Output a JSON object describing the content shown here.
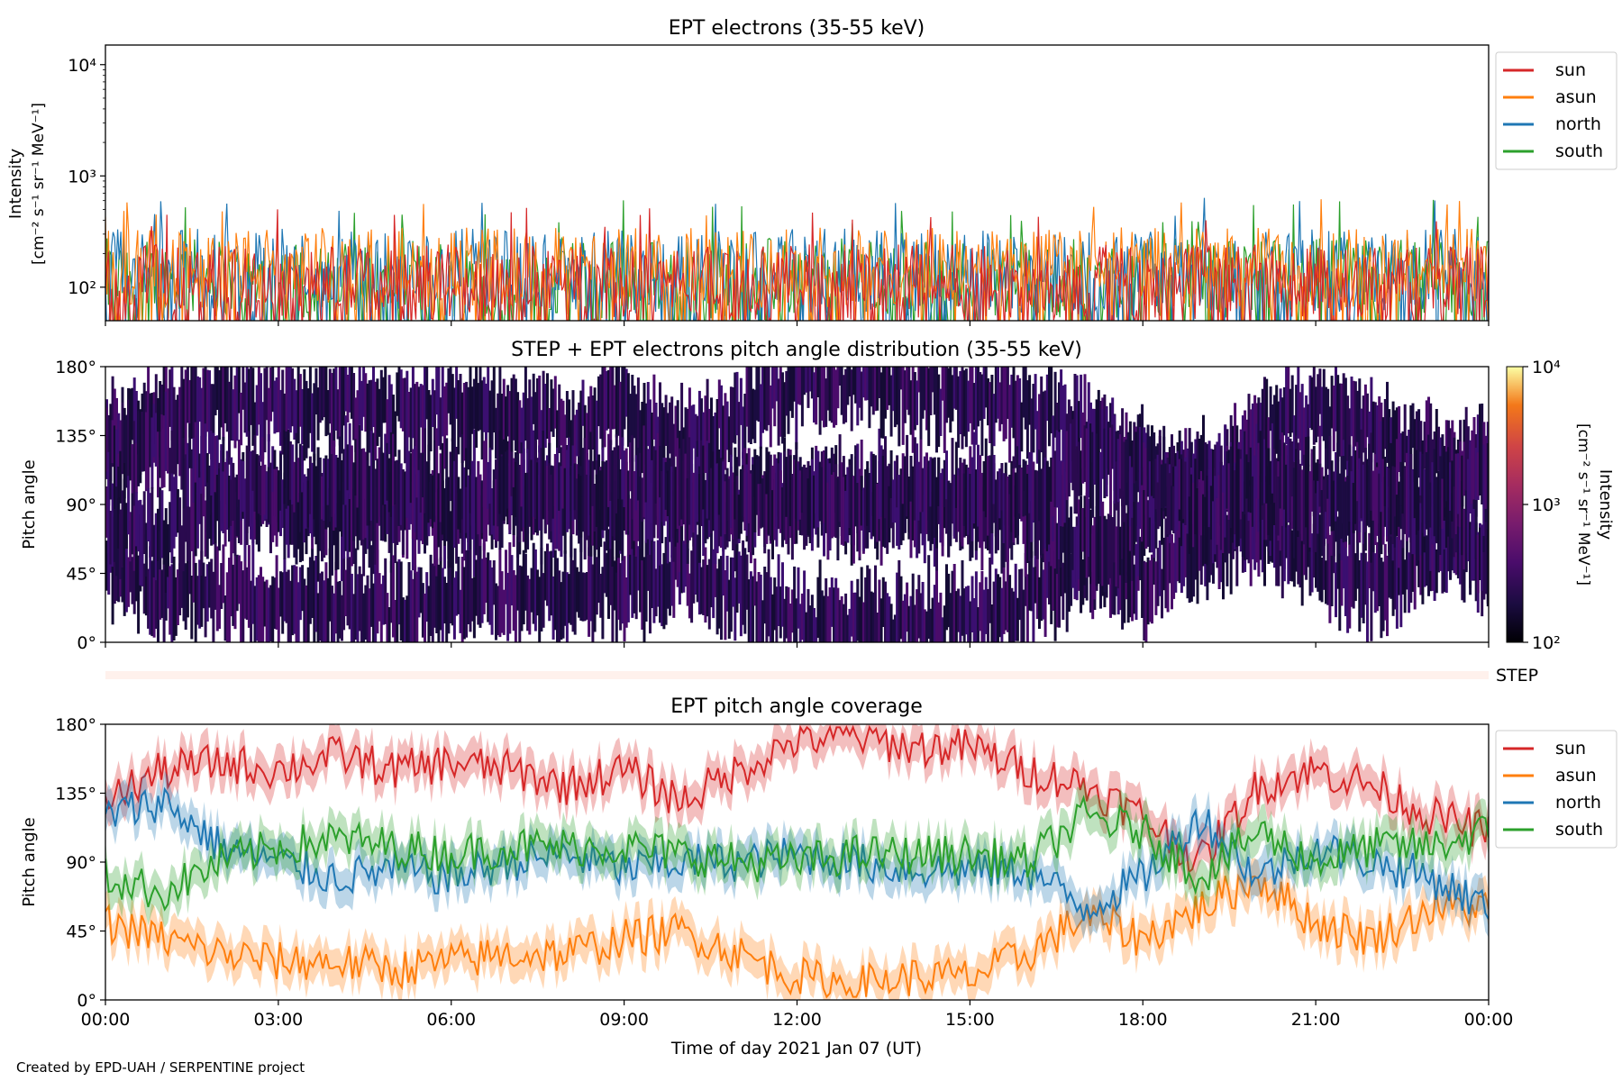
{
  "credit": "Created by EPD-UAH / SERPENTINE project",
  "colors": {
    "sun": "#d62728",
    "asun": "#ff7f0e",
    "north": "#1f77b4",
    "south": "#2ca02c",
    "step_strip": "#fff1ec"
  },
  "chart_data": [
    {
      "type": "line",
      "title": "EPT electrons (35-55 keV)",
      "ylabel": "Intensity",
      "yunit_label": "[cm⁻² s⁻¹ sr⁻¹ MeV⁻¹]",
      "yscale": "log",
      "ylim": [
        50,
        15000
      ],
      "yticks": [
        {
          "v": 100,
          "label": "10²"
        },
        {
          "v": 1000,
          "label": "10³"
        },
        {
          "v": 10000,
          "label": "10⁴"
        }
      ],
      "xlim": [
        "2021-01-07 00:00",
        "2021-01-08 00:00"
      ],
      "series_names": [
        "sun",
        "asun",
        "north",
        "south"
      ],
      "series": [
        {
          "name": "sun",
          "base": 110,
          "spread": 2.2,
          "max_spike": 540
        },
        {
          "name": "asun",
          "base": 150,
          "spread": 2.3,
          "max_spike": 620
        },
        {
          "name": "north",
          "base": 140,
          "spread": 2.4,
          "max_spike": 710
        },
        {
          "name": "south",
          "base": 120,
          "spread": 2.3,
          "max_spike": 620
        }
      ],
      "legend": "outside-right"
    },
    {
      "type": "heatmap",
      "title": "STEP + EPT electrons pitch angle distribution (35-55 keV)",
      "ylabel": "Pitch angle",
      "ylim": [
        0,
        180
      ],
      "yticks": [
        {
          "v": 0,
          "label": "0°"
        },
        {
          "v": 45,
          "label": "45°"
        },
        {
          "v": 90,
          "label": "90°"
        },
        {
          "v": 135,
          "label": "135°"
        },
        {
          "v": 180,
          "label": "180°"
        }
      ],
      "colorbar": {
        "label": "Intensity",
        "unit_label": "[cm⁻² s⁻¹ sr⁻¹ MeV⁻¹]",
        "scale": "log",
        "range": [
          100,
          10000
        ],
        "ticks": [
          {
            "v": 100,
            "label": "10²"
          },
          {
            "v": 1000,
            "label": "10³"
          },
          {
            "v": 10000,
            "label": "10⁴"
          }
        ],
        "colormap": "inferno"
      },
      "step_label": "STEP"
    },
    {
      "type": "line",
      "title": "EPT pitch angle coverage",
      "ylabel": "Pitch angle",
      "xlabel": "Time of day 2021 Jan 07 (UT)",
      "ylim": [
        0,
        180
      ],
      "yticks": [
        {
          "v": 0,
          "label": "0°"
        },
        {
          "v": 45,
          "label": "45°"
        },
        {
          "v": 90,
          "label": "90°"
        },
        {
          "v": 135,
          "label": "135°"
        },
        {
          "v": 180,
          "label": "180°"
        }
      ],
      "xticks": [
        "00:00",
        "03:00",
        "06:00",
        "09:00",
        "12:00",
        "15:00",
        "18:00",
        "21:00",
        "00:00"
      ],
      "band_halfwidth_deg": 12,
      "series": [
        {
          "name": "sun",
          "hours": [
            0,
            1,
            2,
            3,
            4,
            5,
            6,
            7,
            8,
            9,
            10,
            11,
            12,
            13,
            14,
            15,
            16,
            17,
            18,
            19,
            20,
            21,
            22,
            23,
            24
          ],
          "values": [
            130,
            150,
            155,
            150,
            160,
            150,
            155,
            150,
            140,
            150,
            130,
            150,
            170,
            172,
            165,
            165,
            150,
            140,
            120,
            90,
            140,
            150,
            140,
            120,
            110
          ]
        },
        {
          "name": "asun",
          "hours": [
            0,
            1,
            2,
            3,
            4,
            5,
            6,
            7,
            8,
            9,
            10,
            11,
            12,
            13,
            14,
            15,
            16,
            17,
            18,
            19,
            20,
            21,
            22,
            23,
            24
          ],
          "values": [
            50,
            40,
            30,
            25,
            25,
            20,
            25,
            30,
            30,
            40,
            45,
            30,
            15,
            10,
            15,
            15,
            30,
            55,
            40,
            60,
            80,
            50,
            40,
            60,
            60
          ]
        },
        {
          "name": "north",
          "hours": [
            0,
            1,
            2,
            3,
            4,
            5,
            6,
            7,
            8,
            9,
            10,
            11,
            12,
            13,
            14,
            15,
            16,
            17,
            18,
            19,
            20,
            21,
            22,
            23,
            24
          ],
          "values": [
            120,
            130,
            100,
            90,
            80,
            85,
            80,
            90,
            95,
            85,
            90,
            90,
            95,
            90,
            85,
            85,
            85,
            60,
            80,
            120,
            80,
            100,
            90,
            80,
            60
          ]
        },
        {
          "name": "south",
          "hours": [
            0,
            1,
            2,
            3,
            4,
            5,
            6,
            7,
            8,
            9,
            10,
            11,
            12,
            13,
            14,
            15,
            16,
            17,
            18,
            19,
            20,
            21,
            22,
            23,
            24
          ],
          "values": [
            80,
            70,
            90,
            100,
            105,
            100,
            95,
            100,
            100,
            100,
            95,
            90,
            90,
            95,
            95,
            95,
            90,
            120,
            110,
            80,
            110,
            90,
            100,
            100,
            110
          ]
        }
      ],
      "legend": "outside-right"
    }
  ]
}
